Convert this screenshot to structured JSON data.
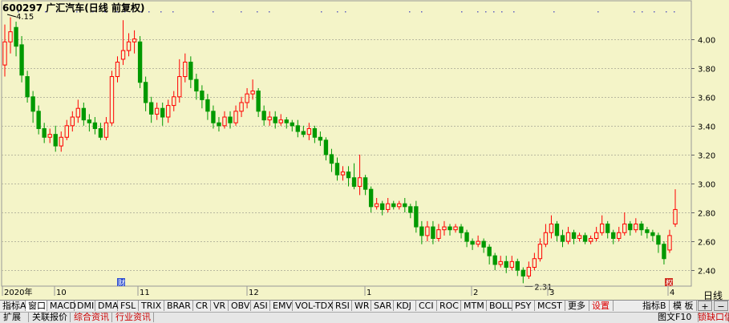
{
  "title": "600297 广汇汽车(日线 前复权)",
  "period_label": "日线",
  "chart_data": {
    "type": "candlestick",
    "ylim": [
      2.29,
      4.17
    ],
    "yticks": [
      "4.00",
      "3.80",
      "3.60",
      "3.40",
      "3.20",
      "3.00",
      "2.80",
      "2.60",
      "2.40"
    ],
    "x_labels": [
      "2020年",
      "10",
      "11",
      "12",
      "1",
      "2",
      "3",
      "4"
    ],
    "annotations": {
      "high": "4.15",
      "low": "2.31"
    },
    "markers": {
      "blue": "财",
      "red": "权"
    },
    "candles": [
      [
        3.82,
        3.98,
        4.1,
        3.74
      ],
      [
        3.98,
        4.05,
        4.15,
        3.9
      ],
      [
        4.08,
        3.95,
        4.12,
        3.88
      ],
      [
        3.96,
        3.75,
        4.02,
        3.7
      ],
      [
        3.74,
        3.6,
        3.78,
        3.56
      ],
      [
        3.6,
        3.5,
        3.64,
        3.42
      ],
      [
        3.5,
        3.38,
        3.54,
        3.34
      ],
      [
        3.38,
        3.32,
        3.42,
        3.28
      ],
      [
        3.32,
        3.34,
        3.38,
        3.28
      ],
      [
        3.34,
        3.26,
        3.4,
        3.22
      ],
      [
        3.26,
        3.32,
        3.36,
        3.22
      ],
      [
        3.32,
        3.4,
        3.44,
        3.3
      ],
      [
        3.4,
        3.46,
        3.5,
        3.36
      ],
      [
        3.46,
        3.52,
        3.58,
        3.42
      ],
      [
        3.52,
        3.44,
        3.56,
        3.4
      ],
      [
        3.44,
        3.42,
        3.48,
        3.36
      ],
      [
        3.42,
        3.38,
        3.46,
        3.34
      ],
      [
        3.38,
        3.32,
        3.42,
        3.3
      ],
      [
        3.32,
        3.42,
        3.46,
        3.3
      ],
      [
        3.42,
        3.74,
        3.78,
        3.4
      ],
      [
        3.74,
        3.84,
        3.88,
        3.7
      ],
      [
        3.86,
        3.92,
        4.13,
        3.82
      ],
      [
        3.92,
        3.98,
        4.04,
        3.88
      ],
      [
        3.98,
        4.0,
        4.06,
        3.9
      ],
      [
        3.98,
        3.7,
        4.02,
        3.66
      ],
      [
        3.7,
        3.56,
        3.74,
        3.5
      ],
      [
        3.56,
        3.48,
        3.6,
        3.42
      ],
      [
        3.48,
        3.52,
        3.56,
        3.44
      ],
      [
        3.52,
        3.46,
        3.56,
        3.4
      ],
      [
        3.46,
        3.54,
        3.58,
        3.42
      ],
      [
        3.54,
        3.6,
        3.64,
        3.5
      ],
      [
        3.6,
        3.74,
        3.86,
        3.56
      ],
      [
        3.74,
        3.84,
        3.9,
        3.7
      ],
      [
        3.84,
        3.72,
        3.88,
        3.66
      ],
      [
        3.72,
        3.64,
        3.76,
        3.58
      ],
      [
        3.64,
        3.58,
        3.68,
        3.52
      ],
      [
        3.58,
        3.5,
        3.62,
        3.44
      ],
      [
        3.5,
        3.42,
        3.54,
        3.38
      ],
      [
        3.42,
        3.4,
        3.46,
        3.36
      ],
      [
        3.4,
        3.46,
        3.5,
        3.38
      ],
      [
        3.46,
        3.42,
        3.5,
        3.38
      ],
      [
        3.42,
        3.5,
        3.54,
        3.4
      ],
      [
        3.5,
        3.56,
        3.6,
        3.46
      ],
      [
        3.56,
        3.62,
        3.66,
        3.52
      ],
      [
        3.62,
        3.64,
        3.72,
        3.58
      ],
      [
        3.64,
        3.5,
        3.66,
        3.46
      ],
      [
        3.5,
        3.44,
        3.54,
        3.4
      ],
      [
        3.44,
        3.46,
        3.5,
        3.4
      ],
      [
        3.46,
        3.42,
        3.5,
        3.38
      ],
      [
        3.42,
        3.44,
        3.48,
        3.4
      ],
      [
        3.44,
        3.42,
        3.46,
        3.38
      ],
      [
        3.42,
        3.4,
        3.44,
        3.36
      ],
      [
        3.4,
        3.36,
        3.44,
        3.32
      ],
      [
        3.36,
        3.34,
        3.4,
        3.32
      ],
      [
        3.34,
        3.38,
        3.42,
        3.3
      ],
      [
        3.38,
        3.32,
        3.4,
        3.28
      ],
      [
        3.32,
        3.3,
        3.36,
        3.26
      ],
      [
        3.3,
        3.2,
        3.32,
        3.16
      ],
      [
        3.2,
        3.14,
        3.24,
        3.08
      ],
      [
        3.14,
        3.06,
        3.18,
        3.02
      ],
      [
        3.06,
        3.08,
        3.12,
        3.02
      ],
      [
        3.08,
        3.04,
        3.12,
        2.98
      ],
      [
        3.04,
        2.98,
        3.14,
        2.96
      ],
      [
        2.98,
        3.04,
        3.2,
        2.92
      ],
      [
        3.04,
        2.96,
        3.06,
        2.92
      ],
      [
        2.96,
        2.84,
        2.98,
        2.8
      ],
      [
        2.84,
        2.86,
        2.9,
        2.82
      ],
      [
        2.86,
        2.82,
        2.88,
        2.78
      ],
      [
        2.82,
        2.86,
        2.9,
        2.8
      ],
      [
        2.86,
        2.84,
        2.88,
        2.82
      ],
      [
        2.84,
        2.86,
        2.88,
        2.82
      ],
      [
        2.86,
        2.84,
        2.9,
        2.8
      ],
      [
        2.84,
        2.8,
        2.86,
        2.76
      ],
      [
        2.84,
        2.7,
        2.88,
        2.66
      ],
      [
        2.7,
        2.64,
        2.74,
        2.58
      ],
      [
        2.64,
        2.7,
        2.74,
        2.6
      ],
      [
        2.7,
        2.62,
        2.74,
        2.58
      ],
      [
        2.62,
        2.68,
        2.72,
        2.6
      ],
      [
        2.68,
        2.7,
        2.74,
        2.64
      ],
      [
        2.7,
        2.68,
        2.72,
        2.64
      ],
      [
        2.68,
        2.7,
        2.72,
        2.66
      ],
      [
        2.7,
        2.66,
        2.72,
        2.62
      ],
      [
        2.66,
        2.6,
        2.68,
        2.56
      ],
      [
        2.6,
        2.58,
        2.62,
        2.54
      ],
      [
        2.58,
        2.6,
        2.64,
        2.56
      ],
      [
        2.6,
        2.56,
        2.62,
        2.52
      ],
      [
        2.56,
        2.5,
        2.58,
        2.44
      ],
      [
        2.5,
        2.44,
        2.52,
        2.4
      ],
      [
        2.44,
        2.46,
        2.5,
        2.42
      ],
      [
        2.46,
        2.42,
        2.5,
        2.38
      ],
      [
        2.42,
        2.46,
        2.5,
        2.4
      ],
      [
        2.46,
        2.4,
        2.48,
        2.36
      ],
      [
        2.4,
        2.36,
        2.42,
        2.31
      ],
      [
        2.36,
        2.42,
        2.46,
        2.34
      ],
      [
        2.42,
        2.48,
        2.52,
        2.4
      ],
      [
        2.48,
        2.58,
        2.62,
        2.46
      ],
      [
        2.58,
        2.66,
        2.72,
        2.56
      ],
      [
        2.66,
        2.72,
        2.78,
        2.62
      ],
      [
        2.72,
        2.64,
        2.74,
        2.6
      ],
      [
        2.64,
        2.6,
        2.68,
        2.56
      ],
      [
        2.6,
        2.66,
        2.7,
        2.58
      ],
      [
        2.66,
        2.62,
        2.68,
        2.58
      ],
      [
        2.62,
        2.64,
        2.66,
        2.6
      ],
      [
        2.64,
        2.6,
        2.66,
        2.58
      ],
      [
        2.6,
        2.62,
        2.64,
        2.58
      ],
      [
        2.62,
        2.66,
        2.7,
        2.6
      ],
      [
        2.66,
        2.72,
        2.78,
        2.64
      ],
      [
        2.72,
        2.66,
        2.74,
        2.62
      ],
      [
        2.66,
        2.62,
        2.68,
        2.58
      ],
      [
        2.62,
        2.66,
        2.7,
        2.6
      ],
      [
        2.66,
        2.72,
        2.8,
        2.64
      ],
      [
        2.72,
        2.68,
        2.74,
        2.64
      ],
      [
        2.68,
        2.72,
        2.76,
        2.66
      ],
      [
        2.72,
        2.68,
        2.74,
        2.64
      ],
      [
        2.68,
        2.66,
        2.7,
        2.62
      ],
      [
        2.66,
        2.64,
        2.68,
        2.6
      ],
      [
        2.64,
        2.58,
        2.66,
        2.52
      ],
      [
        2.58,
        2.48,
        2.6,
        2.44
      ],
      [
        2.54,
        2.64,
        2.68,
        2.52
      ],
      [
        2.72,
        2.82,
        2.96,
        2.7
      ]
    ]
  },
  "tabs_row1": [
    {
      "label": "指标A",
      "active": false
    },
    {
      "label": "窗口",
      "active": true
    },
    {
      "label": "MACD",
      "active": false
    },
    {
      "label": "DMI",
      "active": false
    },
    {
      "label": "DMA",
      "active": false
    },
    {
      "label": "FSL",
      "active": false
    },
    {
      "label": "TRIX",
      "active": false
    },
    {
      "label": "BRAR",
      "active": false
    },
    {
      "label": "CR",
      "active": false
    },
    {
      "label": "VR",
      "active": false
    },
    {
      "label": "OBV",
      "active": false
    },
    {
      "label": "ASI",
      "active": false
    },
    {
      "label": "EMV",
      "active": false
    },
    {
      "label": "VOL-TDX",
      "active": false
    },
    {
      "label": "RSI",
      "active": false
    },
    {
      "label": "WR",
      "active": false
    },
    {
      "label": "SAR",
      "active": false
    },
    {
      "label": "KDJ",
      "active": false
    },
    {
      "label": "CCI",
      "active": false
    },
    {
      "label": "ROC",
      "active": false
    },
    {
      "label": "MTM",
      "active": false
    },
    {
      "label": "BOLL",
      "active": false
    },
    {
      "label": "PSY",
      "active": false
    },
    {
      "label": "MCST",
      "active": false
    },
    {
      "label": "更多",
      "active": false
    },
    {
      "label": "设置",
      "active": false,
      "red": true
    }
  ],
  "tabs_row1_right": {
    "indicator_b": "指标B",
    "template": "模 板",
    "plus": "+",
    "minus": "−"
  },
  "tabs_row2": [
    {
      "label": "扩展",
      "red": false
    },
    {
      "label": "关联报价",
      "red": false
    },
    {
      "label": "综合资讯",
      "red": true
    },
    {
      "label": "行业资讯",
      "red": true
    }
  ],
  "tabs_row2_right": {
    "f10": "图文F10",
    "lock": "锁",
    "gap": "缺口",
    "gap2": "信"
  },
  "colors": {
    "up": "#ff0000",
    "down": "#009900",
    "bg": "#f4f4c8",
    "grid": "#b8b8a0"
  }
}
